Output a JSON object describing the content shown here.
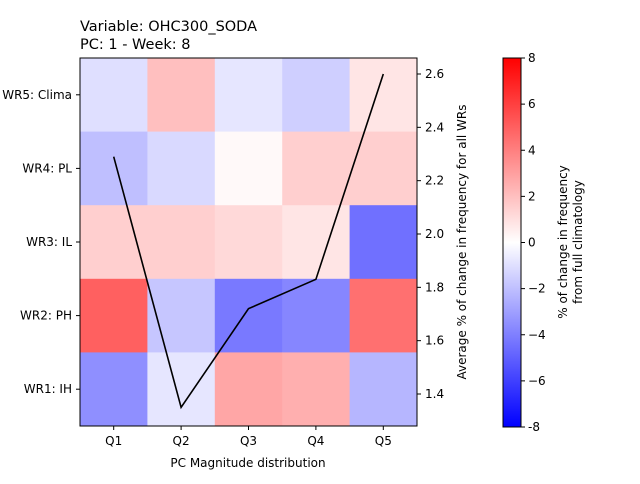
{
  "chart_data": {
    "type": "heatmap",
    "title_line1": "Variable: OHC300_SODA",
    "title_line2": "PC: 1 - Week: 8",
    "xlabel": "PC Magnitude distribution",
    "y2label": "Average % of change in frequency for all WRs",
    "colorbar_label_line1": "% of change in frequency",
    "colorbar_label_line2": "from full climatology",
    "x_categories": [
      "Q1",
      "Q2",
      "Q3",
      "Q4",
      "Q5"
    ],
    "y_categories": [
      "WR5: Clima",
      "WR4: PL",
      "WR3: IL",
      "WR2: PH",
      "WR1: IH"
    ],
    "values": [
      [
        -1.0,
        2.0,
        -0.8,
        -1.5,
        0.8
      ],
      [
        -2.0,
        -1.2,
        0.2,
        1.5,
        1.5
      ],
      [
        1.5,
        1.5,
        1.2,
        0.8,
        -4.5
      ],
      [
        5.0,
        -1.8,
        -4.2,
        -3.8,
        4.5
      ],
      [
        -3.5,
        -0.8,
        2.8,
        2.5,
        -2.3
      ]
    ],
    "colorbar_range": [
      -8,
      8
    ],
    "colorbar_ticks": [
      "-8",
      "−6",
      "−4",
      "−2",
      "0",
      "2",
      "4",
      "6",
      "8"
    ],
    "line_series": {
      "x": [
        "Q1",
        "Q2",
        "Q3",
        "Q4",
        "Q5"
      ],
      "values": [
        2.29,
        1.35,
        1.72,
        1.83,
        2.6
      ]
    },
    "y2lim": [
      1.28,
      2.66
    ],
    "y2ticks": [
      "1.4",
      "1.6",
      "1.8",
      "2.0",
      "2.2",
      "2.4",
      "2.6"
    ],
    "colormap": {
      "min": "#0000ff",
      "mid": "#ffffff",
      "max": "#ff0000"
    },
    "line_color": "#000000"
  }
}
